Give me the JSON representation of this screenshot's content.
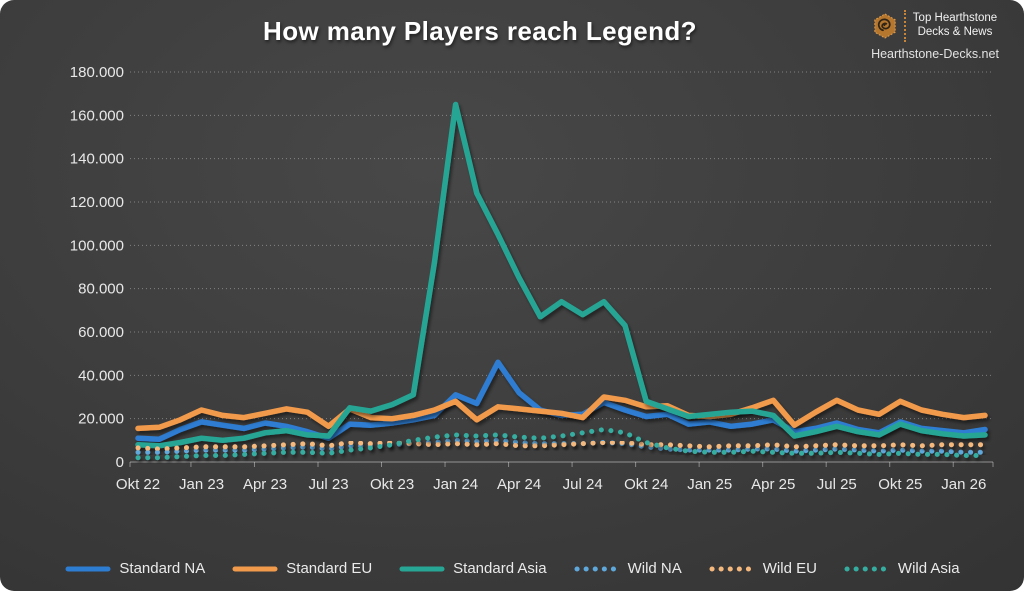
{
  "title": "How many Players reach Legend?",
  "branding": {
    "line1": "Top Hearthstone",
    "line2": "Decks & News",
    "website": "Hearthstone-Decks.net",
    "accent_color": "#C98437"
  },
  "chart_data": {
    "type": "line",
    "title": "How many Players reach Legend?",
    "xlabel": "",
    "ylabel": "",
    "grid": true,
    "legend_position": "bottom",
    "ylim": [
      0,
      180000
    ],
    "y_ticks": [
      {
        "value": 0,
        "label": "0"
      },
      {
        "value": 20000,
        "label": "20.000"
      },
      {
        "value": 40000,
        "label": "40.000"
      },
      {
        "value": 60000,
        "label": "60.000"
      },
      {
        "value": 80000,
        "label": "80.000"
      },
      {
        "value": 100000,
        "label": "100.000"
      },
      {
        "value": 120000,
        "label": "120.000"
      },
      {
        "value": 140000,
        "label": "140.000"
      },
      {
        "value": 160000,
        "label": "160.000"
      },
      {
        "value": 180000,
        "label": "180.000"
      }
    ],
    "x": [
      "Okt 22",
      "Nov 22",
      "Dez 22",
      "Jan 23",
      "Feb 23",
      "Mär 23",
      "Apr 23",
      "Mai 23",
      "Jun 23",
      "Jul 23",
      "Aug 23",
      "Sep 23",
      "Okt 23",
      "Nov 23",
      "Dez 23",
      "Jan 24",
      "Feb 24",
      "Mär 24",
      "Apr 24",
      "Mai 24",
      "Jun 24",
      "Jul 24",
      "Aug 24",
      "Sep 24",
      "Okt 24",
      "Nov 24",
      "Dez 24",
      "Jan 25",
      "Feb 25",
      "Mär 25",
      "Apr 25",
      "Mai 25",
      "Jun 25",
      "Jul 25",
      "Aug 25",
      "Sep 25",
      "Okt 25",
      "Nov 25",
      "Dez 25",
      "Jan 26",
      "Feb 26"
    ],
    "x_tick_labels": [
      "Okt 22",
      "Jan 23",
      "Apr 23",
      "Jul 23",
      "Okt 23",
      "Jan 24",
      "Apr 24",
      "Jul 24",
      "Okt 24",
      "Jan 25",
      "Apr 25",
      "Jul 25",
      "Okt 25",
      "Jan 26"
    ],
    "x_tick_step": 3,
    "series": [
      {
        "name": "Standard NA",
        "style": "solid",
        "color": "#2D7DD2",
        "values": [
          11000,
          10500,
          15000,
          18500,
          17000,
          15500,
          18000,
          16500,
          14000,
          11000,
          17500,
          17000,
          18000,
          19500,
          21500,
          31000,
          27000,
          46000,
          32000,
          24000,
          21500,
          22000,
          27500,
          24000,
          21000,
          22000,
          17500,
          18500,
          16500,
          17500,
          19500,
          14000,
          15500,
          18000,
          15000,
          13500,
          18500,
          15500,
          14500,
          13500,
          15000
        ]
      },
      {
        "name": "Standard EU",
        "style": "solid",
        "color": "#F29A4B",
        "values": [
          15500,
          16000,
          19500,
          24000,
          21500,
          20500,
          22500,
          24500,
          23000,
          16500,
          24500,
          20500,
          20000,
          21500,
          24000,
          28000,
          19500,
          25500,
          24500,
          23500,
          22500,
          20500,
          30000,
          28500,
          25500,
          26000,
          21500,
          21000,
          22000,
          25000,
          28500,
          17000,
          23000,
          28500,
          24000,
          22000,
          28000,
          24000,
          22000,
          20500,
          21500
        ]
      },
      {
        "name": "Standard Asia",
        "style": "solid",
        "color": "#27A595",
        "values": [
          8000,
          7500,
          9000,
          11000,
          10000,
          11000,
          13500,
          14500,
          12500,
          12000,
          25000,
          23500,
          26500,
          31000,
          92000,
          165000,
          124000,
          105000,
          85000,
          67000,
          74000,
          68000,
          74000,
          63000,
          28000,
          24500,
          21000,
          22000,
          23000,
          23500,
          21500,
          12000,
          14000,
          16500,
          14000,
          12500,
          17500,
          14500,
          13000,
          12000,
          12500
        ]
      },
      {
        "name": "Wild NA",
        "style": "dotted",
        "color": "#5FA8DC",
        "values": [
          4500,
          4500,
          5000,
          5500,
          5500,
          5500,
          6000,
          6500,
          7000,
          6000,
          7500,
          7500,
          8000,
          8500,
          9000,
          10000,
          9500,
          10000,
          9000,
          8500,
          8500,
          8500,
          9000,
          8500,
          7000,
          6000,
          5500,
          5500,
          5500,
          6000,
          6000,
          5000,
          5500,
          6000,
          5500,
          5000,
          5500,
          5000,
          5000,
          4500,
          4500
        ]
      },
      {
        "name": "Wild EU",
        "style": "dotted",
        "color": "#F5B87D",
        "values": [
          6500,
          6000,
          6500,
          7000,
          7000,
          7000,
          7500,
          8000,
          8500,
          7500,
          9000,
          8500,
          9000,
          8500,
          8000,
          8500,
          8000,
          8500,
          7500,
          7500,
          8000,
          8500,
          9000,
          9000,
          8000,
          8000,
          7500,
          7000,
          7500,
          7500,
          8000,
          7000,
          7500,
          8000,
          7500,
          7500,
          8000,
          7500,
          8000,
          8000,
          8000
        ]
      },
      {
        "name": "Wild Asia",
        "style": "dotted",
        "color": "#35ADA0",
        "values": [
          2000,
          2000,
          2500,
          3000,
          3000,
          3500,
          4000,
          4500,
          4500,
          4000,
          5500,
          6500,
          8000,
          10000,
          11500,
          12500,
          12000,
          12500,
          11500,
          11000,
          12000,
          13500,
          15000,
          13500,
          9000,
          6500,
          5000,
          4500,
          4500,
          5000,
          4500,
          4000,
          4000,
          4500,
          4000,
          3500,
          4000,
          3500,
          3500,
          3000,
          3000
        ]
      }
    ]
  }
}
